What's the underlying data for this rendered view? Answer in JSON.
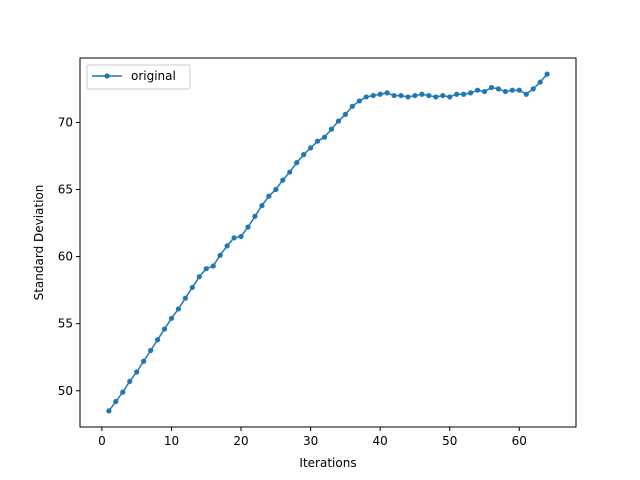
{
  "chart_data": {
    "type": "line",
    "xlabel": "Iterations",
    "ylabel": "Standard Deviation",
    "xlim": [
      -3.15,
      68.15
    ],
    "ylim": [
      47.3,
      74.8
    ],
    "xticks": [
      0,
      10,
      20,
      30,
      40,
      50,
      60
    ],
    "yticks": [
      50,
      55,
      60,
      65,
      70
    ],
    "grid": false,
    "legend_position": "top-left",
    "series": [
      {
        "name": "original",
        "color": "#1f77b4",
        "marker": "circle",
        "x": [
          1,
          2,
          3,
          4,
          5,
          6,
          7,
          8,
          9,
          10,
          11,
          12,
          13,
          14,
          15,
          16,
          17,
          18,
          19,
          20,
          21,
          22,
          23,
          24,
          25,
          26,
          27,
          28,
          29,
          30,
          31,
          32,
          33,
          34,
          35,
          36,
          37,
          38,
          39,
          40,
          41,
          42,
          43,
          44,
          45,
          46,
          47,
          48,
          49,
          50,
          51,
          52,
          53,
          54,
          55,
          56,
          57,
          58,
          59,
          60,
          61,
          62,
          63,
          64
        ],
        "values": [
          48.5,
          49.2,
          49.9,
          50.7,
          51.4,
          52.2,
          53.0,
          53.8,
          54.6,
          55.4,
          56.1,
          56.9,
          57.7,
          58.5,
          59.1,
          59.3,
          60.1,
          60.8,
          61.4,
          61.5,
          62.2,
          63.0,
          63.8,
          64.5,
          65.0,
          65.7,
          66.3,
          67.0,
          67.6,
          68.1,
          68.6,
          68.9,
          69.5,
          70.1,
          70.6,
          71.2,
          71.6,
          71.9,
          72.0,
          72.1,
          72.2,
          72.0,
          72.0,
          71.9,
          72.0,
          72.1,
          72.0,
          71.9,
          72.0,
          71.9,
          72.1,
          72.1,
          72.2,
          72.4,
          72.3,
          72.6,
          72.5,
          72.3,
          72.4,
          72.4,
          72.1,
          72.5,
          73.0,
          73.6
        ]
      }
    ]
  }
}
